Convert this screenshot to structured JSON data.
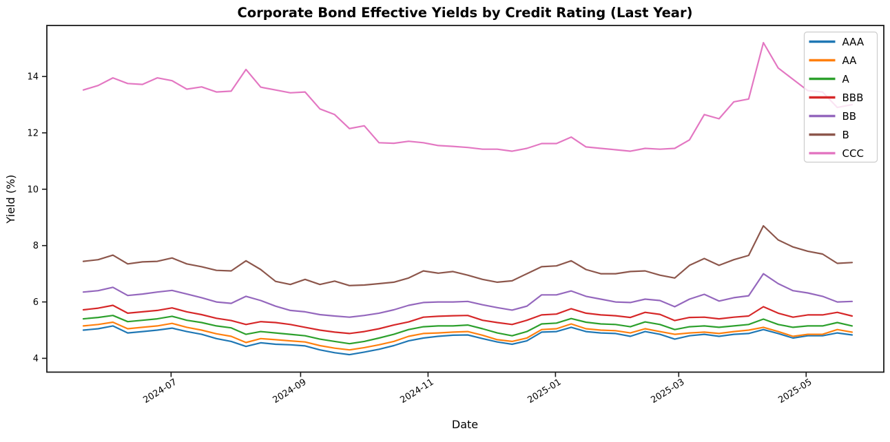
{
  "chart_data": {
    "type": "line",
    "title": "Corporate Bond Effective Yields by Credit Rating (Last Year)",
    "xlabel": "Date",
    "ylabel": "Yield (%)",
    "grid": false,
    "legend_position": "upper right",
    "ylim": [
      3.51,
      15.81
    ],
    "y_ticks": [
      4,
      6,
      8,
      10,
      12,
      14
    ],
    "x_tick_labels": [
      "2024-07",
      "2024-09",
      "2024-11",
      "2025-01",
      "2025-03",
      "2025-05"
    ],
    "x_tick_days": [
      42,
      104,
      165,
      226,
      285,
      346
    ],
    "x_span_days": 368,
    "x_start_date": "2024-05-20",
    "x_end_date": "2025-05-23",
    "sample_interval": "weekly",
    "dates": [
      "2024-05-20",
      "2024-05-27",
      "2024-06-03",
      "2024-06-10",
      "2024-06-17",
      "2024-06-24",
      "2024-07-01",
      "2024-07-08",
      "2024-07-15",
      "2024-07-22",
      "2024-07-29",
      "2024-08-05",
      "2024-08-12",
      "2024-08-19",
      "2024-08-26",
      "2024-09-02",
      "2024-09-09",
      "2024-09-16",
      "2024-09-23",
      "2024-09-30",
      "2024-10-07",
      "2024-10-14",
      "2024-10-21",
      "2024-10-28",
      "2024-11-04",
      "2024-11-11",
      "2024-11-18",
      "2024-11-25",
      "2024-12-02",
      "2024-12-09",
      "2024-12-16",
      "2024-12-23",
      "2024-12-30",
      "2025-01-06",
      "2025-01-13",
      "2025-01-20",
      "2025-01-27",
      "2025-02-03",
      "2025-02-10",
      "2025-02-17",
      "2025-02-24",
      "2025-03-03",
      "2025-03-10",
      "2025-03-17",
      "2025-03-24",
      "2025-03-31",
      "2025-04-07",
      "2025-04-14",
      "2025-04-21",
      "2025-04-28",
      "2025-05-05",
      "2025-05-12",
      "2025-05-19"
    ],
    "series": [
      {
        "name": "AAA",
        "color": "#1f77b4",
        "values": [
          5.0,
          5.05,
          5.15,
          4.9,
          4.95,
          5.0,
          5.07,
          4.95,
          4.85,
          4.7,
          4.6,
          4.42,
          4.55,
          4.5,
          4.48,
          4.44,
          4.3,
          4.2,
          4.13,
          4.22,
          4.32,
          4.45,
          4.62,
          4.72,
          4.78,
          4.82,
          4.83,
          4.7,
          4.58,
          4.5,
          4.62,
          4.93,
          4.95,
          5.1,
          4.95,
          4.9,
          4.88,
          4.78,
          4.95,
          4.85,
          4.68,
          4.8,
          4.85,
          4.78,
          4.85,
          4.88,
          5.02,
          4.88,
          4.72,
          4.8,
          4.8,
          4.9,
          4.83
        ]
      },
      {
        "name": "AA",
        "color": "#ff7f0e",
        "values": [
          5.15,
          5.2,
          5.28,
          5.05,
          5.1,
          5.15,
          5.24,
          5.1,
          5.0,
          4.87,
          4.78,
          4.56,
          4.7,
          4.66,
          4.62,
          4.58,
          4.45,
          4.36,
          4.3,
          4.38,
          4.48,
          4.6,
          4.78,
          4.88,
          4.9,
          4.93,
          4.95,
          4.82,
          4.66,
          4.6,
          4.72,
          5.02,
          5.05,
          5.22,
          5.05,
          5.0,
          4.98,
          4.9,
          5.05,
          4.95,
          4.85,
          4.9,
          4.93,
          4.88,
          4.95,
          5.0,
          5.1,
          4.95,
          4.78,
          4.85,
          4.85,
          5.02,
          4.93
        ]
      },
      {
        "name": "A",
        "color": "#2ca02c",
        "values": [
          5.4,
          5.45,
          5.52,
          5.3,
          5.35,
          5.4,
          5.49,
          5.35,
          5.27,
          5.15,
          5.08,
          4.85,
          4.95,
          4.9,
          4.85,
          4.8,
          4.68,
          4.6,
          4.52,
          4.6,
          4.72,
          4.85,
          5.02,
          5.12,
          5.15,
          5.15,
          5.18,
          5.05,
          4.9,
          4.8,
          4.95,
          5.22,
          5.25,
          5.41,
          5.28,
          5.22,
          5.2,
          5.12,
          5.29,
          5.2,
          5.02,
          5.12,
          5.15,
          5.1,
          5.15,
          5.2,
          5.39,
          5.2,
          5.1,
          5.15,
          5.15,
          5.27,
          5.15
        ]
      },
      {
        "name": "BBB",
        "color": "#d62728",
        "values": [
          5.72,
          5.78,
          5.88,
          5.6,
          5.65,
          5.7,
          5.79,
          5.65,
          5.55,
          5.42,
          5.34,
          5.2,
          5.3,
          5.27,
          5.2,
          5.1,
          5.0,
          4.93,
          4.88,
          4.95,
          5.05,
          5.18,
          5.29,
          5.46,
          5.49,
          5.51,
          5.52,
          5.35,
          5.27,
          5.2,
          5.35,
          5.54,
          5.57,
          5.76,
          5.6,
          5.54,
          5.51,
          5.45,
          5.63,
          5.56,
          5.34,
          5.45,
          5.46,
          5.4,
          5.46,
          5.5,
          5.83,
          5.6,
          5.46,
          5.54,
          5.54,
          5.63,
          5.5
        ]
      },
      {
        "name": "BB",
        "color": "#9467bd",
        "values": [
          6.35,
          6.4,
          6.52,
          6.23,
          6.28,
          6.35,
          6.41,
          6.28,
          6.15,
          6.0,
          5.95,
          6.2,
          6.05,
          5.85,
          5.7,
          5.65,
          5.55,
          5.5,
          5.46,
          5.52,
          5.6,
          5.72,
          5.88,
          5.98,
          6.0,
          6.0,
          6.02,
          5.9,
          5.8,
          5.71,
          5.85,
          6.25,
          6.25,
          6.39,
          6.2,
          6.1,
          6.0,
          5.98,
          6.1,
          6.05,
          5.83,
          6.1,
          6.27,
          6.03,
          6.15,
          6.22,
          7.0,
          6.65,
          6.4,
          6.32,
          6.2,
          6.0,
          6.02
        ]
      },
      {
        "name": "B",
        "color": "#8c564b",
        "values": [
          7.44,
          7.5,
          7.66,
          7.35,
          7.42,
          7.44,
          7.56,
          7.35,
          7.25,
          7.12,
          7.1,
          7.46,
          7.15,
          6.73,
          6.62,
          6.8,
          6.62,
          6.74,
          6.58,
          6.6,
          6.65,
          6.7,
          6.85,
          7.1,
          7.02,
          7.08,
          6.95,
          6.8,
          6.7,
          6.75,
          7.0,
          7.25,
          7.28,
          7.46,
          7.15,
          7.0,
          7.0,
          7.08,
          7.1,
          6.95,
          6.85,
          7.3,
          7.54,
          7.3,
          7.5,
          7.65,
          8.7,
          8.2,
          7.95,
          7.8,
          7.7,
          7.37,
          7.4
        ]
      },
      {
        "name": "CCC",
        "color": "#e377c2",
        "values": [
          13.52,
          13.68,
          13.95,
          13.75,
          13.72,
          13.95,
          13.85,
          13.55,
          13.63,
          13.45,
          13.48,
          14.25,
          13.62,
          13.52,
          13.42,
          13.45,
          12.85,
          12.65,
          12.15,
          12.25,
          11.65,
          11.63,
          11.7,
          11.65,
          11.55,
          11.52,
          11.48,
          11.42,
          11.42,
          11.35,
          11.45,
          11.62,
          11.62,
          11.85,
          11.5,
          11.45,
          11.4,
          11.35,
          11.45,
          11.42,
          11.45,
          11.75,
          12.65,
          12.5,
          13.1,
          13.2,
          15.2,
          14.3,
          13.9,
          13.5,
          13.45,
          12.9,
          13.0
        ]
      }
    ]
  }
}
